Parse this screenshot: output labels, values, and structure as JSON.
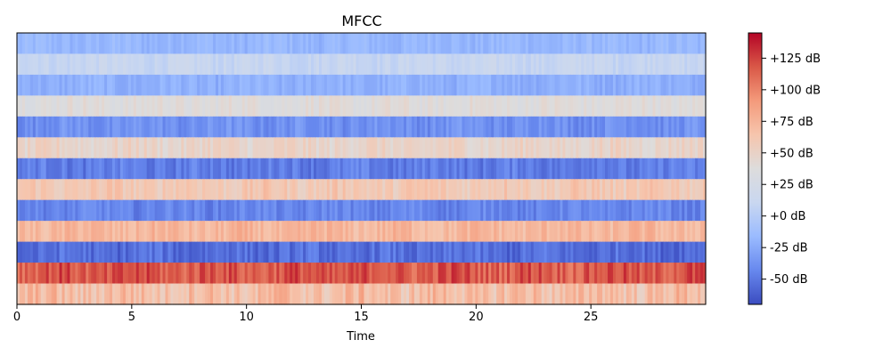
{
  "chart_data": {
    "type": "heatmap",
    "title": "MFCC",
    "xlabel": "Time",
    "ylabel": "",
    "x_range": [
      0,
      30
    ],
    "x_ticks": [
      0,
      5,
      10,
      15,
      20,
      25
    ],
    "coefficient_count": 13,
    "band_mean_db": [
      -18,
      10,
      -22,
      38,
      -38,
      48,
      -48,
      60,
      -44,
      72,
      -55,
      118,
      68
    ],
    "band_variation_db": [
      6,
      6,
      6,
      7,
      8,
      9,
      9,
      10,
      8,
      10,
      10,
      14,
      16
    ],
    "colorbar": {
      "range_db": [
        -70,
        145
      ],
      "ticks": [
        125,
        100,
        75,
        50,
        25,
        0,
        -25,
        -50
      ],
      "tick_labels": [
        "+125 dB",
        "+100 dB",
        "+75 dB",
        "+50 dB",
        "+25 dB",
        "+0 dB",
        "-25 dB",
        "-50 dB"
      ],
      "colormap": "coolwarm",
      "colormap_stops": [
        "#3b4cc0",
        "#6788ee",
        "#9abbff",
        "#c9d7f0",
        "#dddcdc",
        "#f6c5ad",
        "#f49a7b",
        "#d95847",
        "#b40426"
      ]
    }
  }
}
